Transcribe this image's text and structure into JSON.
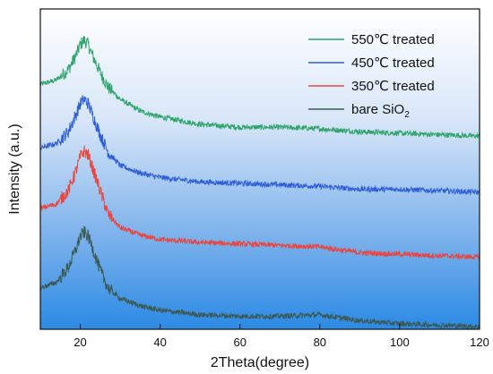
{
  "chart_data": {
    "type": "line",
    "title": "",
    "xlabel": "2Theta(degree)",
    "ylabel": "Intensity (a.u.)",
    "xlim": [
      10,
      120
    ],
    "x_ticks": [
      20,
      40,
      60,
      80,
      100,
      120
    ],
    "y_ticks_shown": false,
    "grid": false,
    "legend_position": "top-right",
    "series": [
      {
        "name": "550℃ treated",
        "color": "#2ea36a",
        "points": [
          [
            10,
            0.82
          ],
          [
            14,
            0.835
          ],
          [
            17,
            0.87
          ],
          [
            19,
            0.92
          ],
          [
            20,
            0.955
          ],
          [
            21,
            0.97
          ],
          [
            22,
            0.955
          ],
          [
            23,
            0.92
          ],
          [
            25,
            0.86
          ],
          [
            27,
            0.81
          ],
          [
            30,
            0.77
          ],
          [
            35,
            0.73
          ],
          [
            40,
            0.71
          ],
          [
            50,
            0.685
          ],
          [
            60,
            0.675
          ],
          [
            70,
            0.675
          ],
          [
            80,
            0.67
          ],
          [
            90,
            0.66
          ],
          [
            100,
            0.655
          ],
          [
            110,
            0.65
          ],
          [
            120,
            0.645
          ]
        ]
      },
      {
        "name": "450℃ treated",
        "color": "#2f5ed9",
        "points": [
          [
            10,
            0.605
          ],
          [
            14,
            0.62
          ],
          [
            17,
            0.66
          ],
          [
            19,
            0.72
          ],
          [
            20,
            0.755
          ],
          [
            21,
            0.77
          ],
          [
            22,
            0.755
          ],
          [
            23,
            0.72
          ],
          [
            25,
            0.65
          ],
          [
            27,
            0.59
          ],
          [
            30,
            0.545
          ],
          [
            35,
            0.52
          ],
          [
            40,
            0.505
          ],
          [
            50,
            0.49
          ],
          [
            60,
            0.485
          ],
          [
            70,
            0.48
          ],
          [
            80,
            0.475
          ],
          [
            90,
            0.465
          ],
          [
            100,
            0.465
          ],
          [
            110,
            0.46
          ],
          [
            120,
            0.455
          ]
        ]
      },
      {
        "name": "350℃ treated",
        "color": "#e8463f",
        "points": [
          [
            10,
            0.4
          ],
          [
            14,
            0.415
          ],
          [
            17,
            0.46
          ],
          [
            19,
            0.53
          ],
          [
            20,
            0.575
          ],
          [
            21,
            0.595
          ],
          [
            22,
            0.58
          ],
          [
            23,
            0.54
          ],
          [
            25,
            0.46
          ],
          [
            27,
            0.38
          ],
          [
            30,
            0.335
          ],
          [
            35,
            0.31
          ],
          [
            40,
            0.295
          ],
          [
            50,
            0.285
          ],
          [
            60,
            0.28
          ],
          [
            70,
            0.275
          ],
          [
            80,
            0.27
          ],
          [
            90,
            0.25
          ],
          [
            100,
            0.245
          ],
          [
            110,
            0.24
          ],
          [
            120,
            0.235
          ]
        ]
      },
      {
        "name": "bare SiO2",
        "name_main": "bare SiO",
        "name_sub": "2",
        "color": "#3c5a55",
        "points": [
          [
            10,
            0.13
          ],
          [
            14,
            0.15
          ],
          [
            17,
            0.2
          ],
          [
            19,
            0.265
          ],
          [
            20,
            0.305
          ],
          [
            21,
            0.32
          ],
          [
            22,
            0.305
          ],
          [
            23,
            0.27
          ],
          [
            25,
            0.19
          ],
          [
            27,
            0.13
          ],
          [
            30,
            0.095
          ],
          [
            35,
            0.07
          ],
          [
            40,
            0.055
          ],
          [
            50,
            0.04
          ],
          [
            60,
            0.035
          ],
          [
            70,
            0.035
          ],
          [
            80,
            0.04
          ],
          [
            90,
            0.02
          ],
          [
            100,
            0.01
          ],
          [
            110,
            0.005
          ],
          [
            120,
            0.0
          ]
        ]
      }
    ]
  }
}
